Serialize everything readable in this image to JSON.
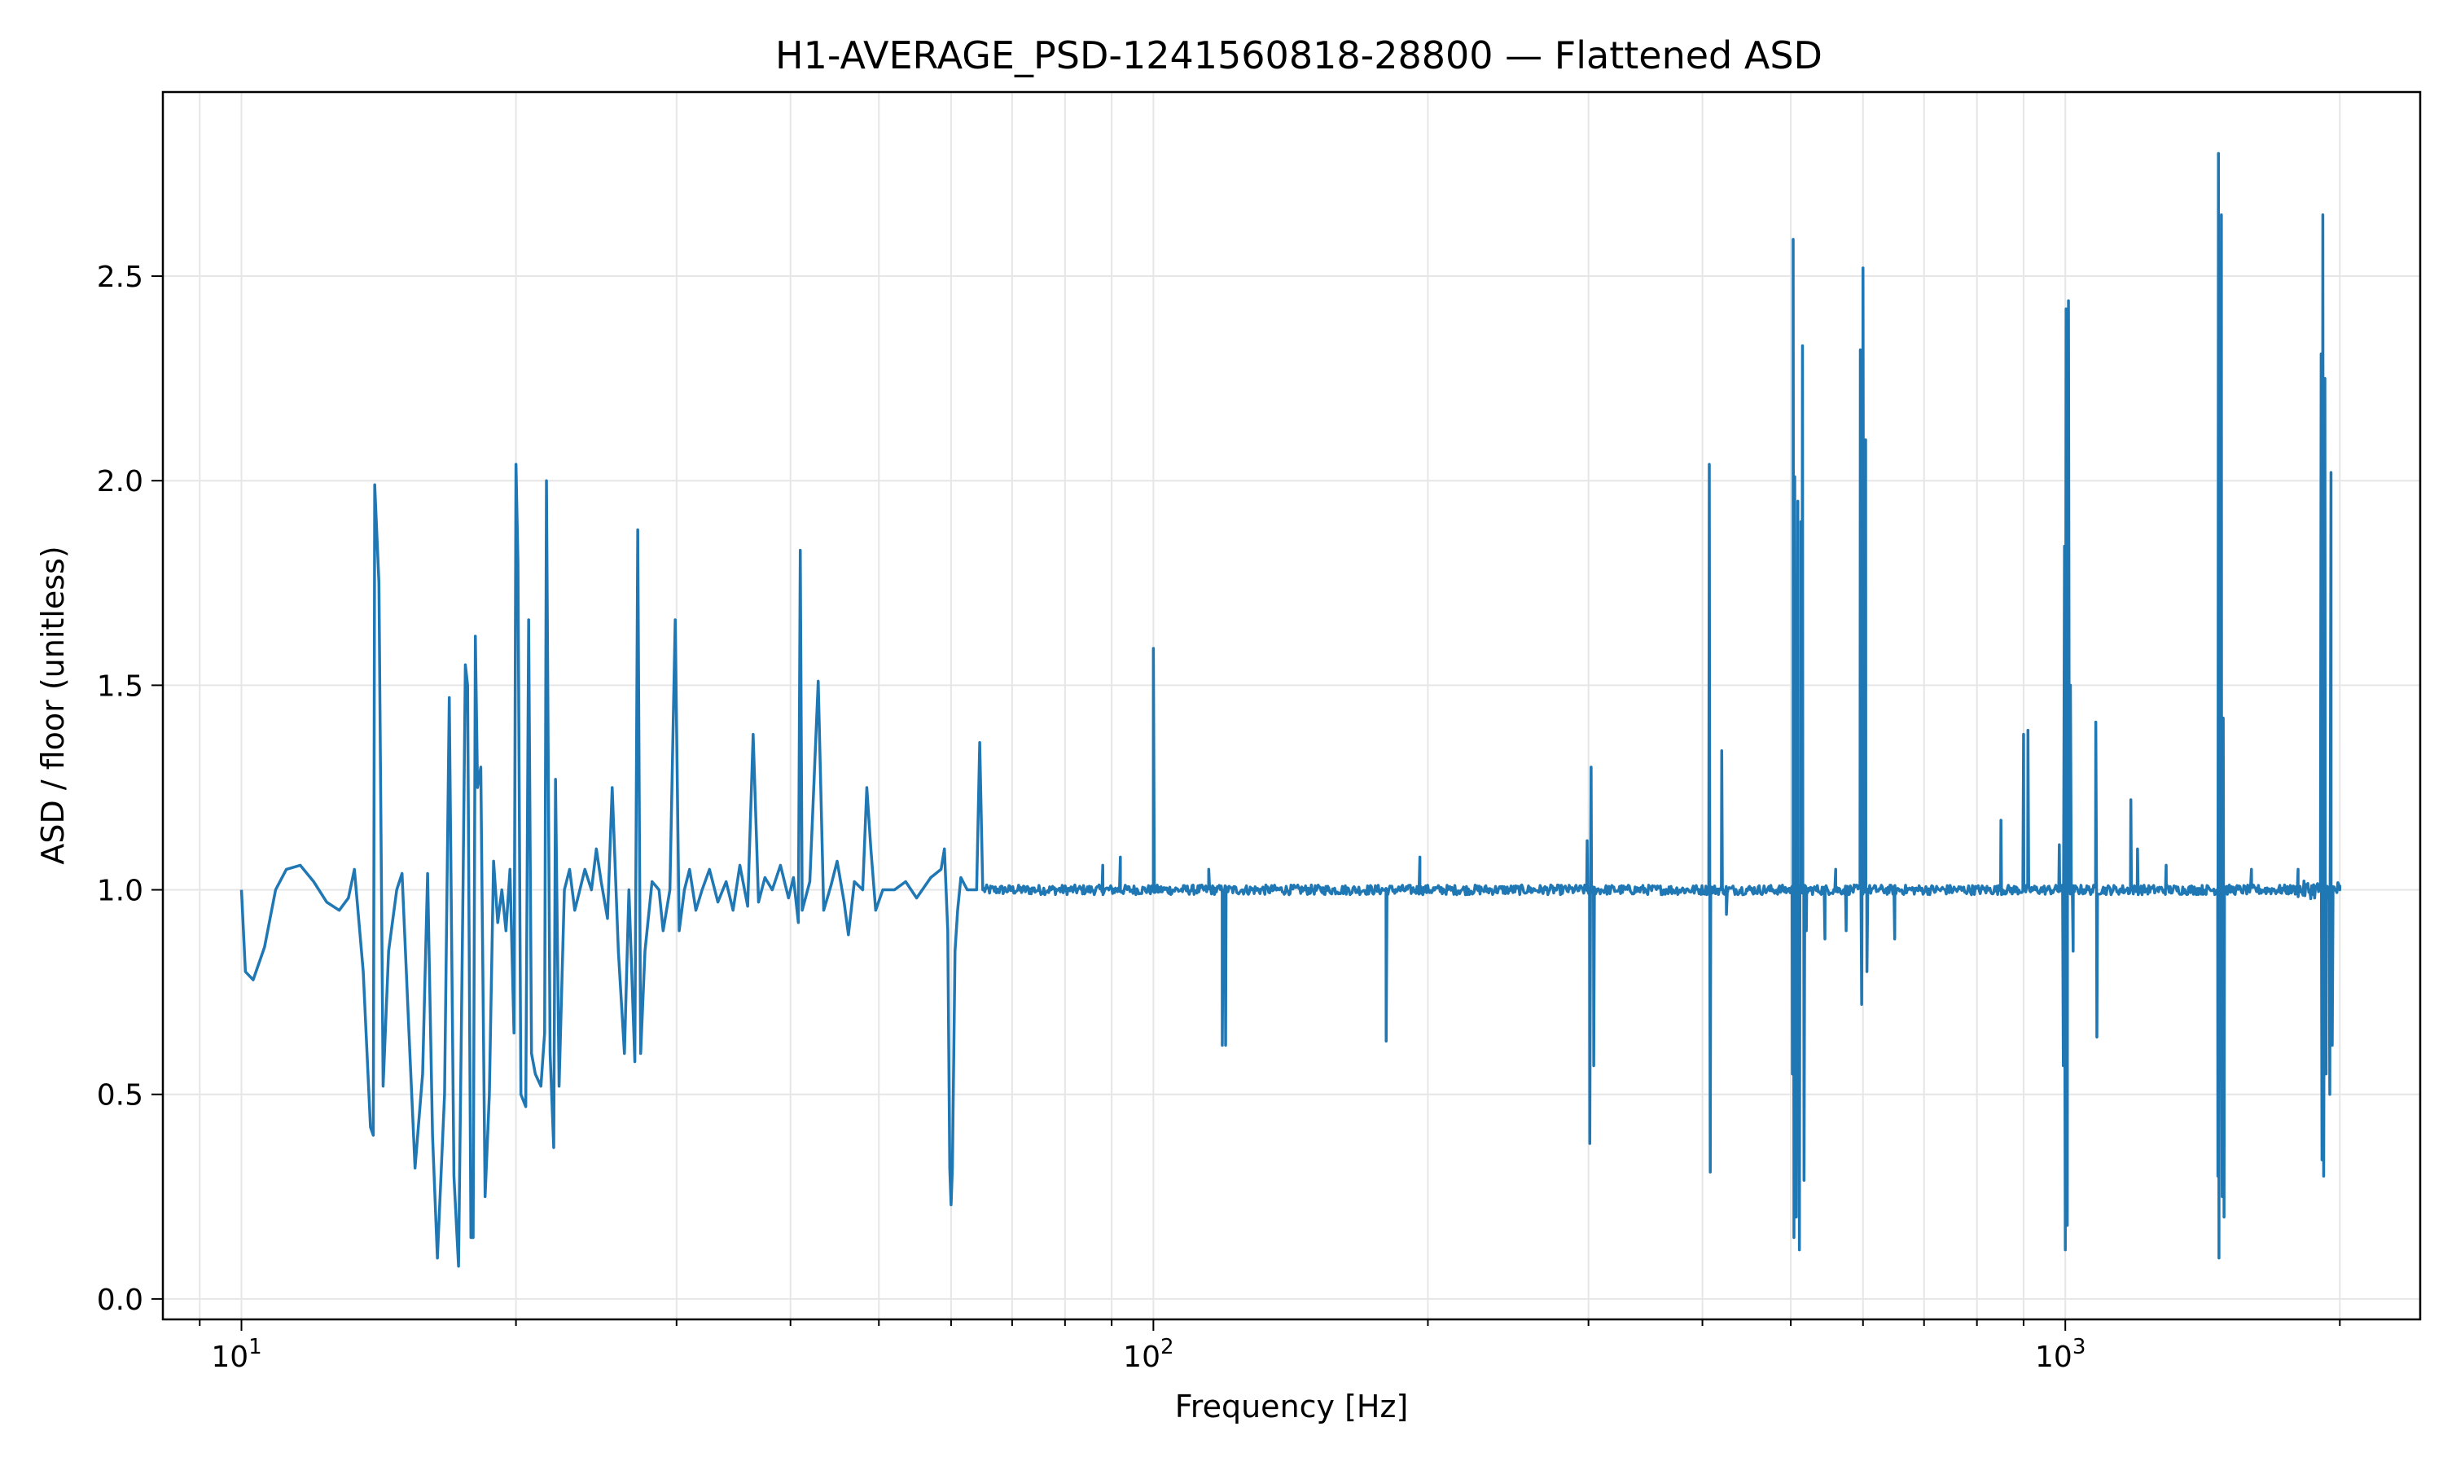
{
  "chart_data": {
    "type": "line",
    "title": "H1-AVERAGE_PSD-1241560818-28800 — Flattened ASD",
    "xlabel": "Frequency [Hz]",
    "ylabel": "ASD / floor (unitless)",
    "x_scale": "log",
    "xlim": [
      8.2,
      2450
    ],
    "ylim": [
      -0.05,
      2.95
    ],
    "grid": true,
    "x_ticks": [
      {
        "value": 10,
        "base": "10",
        "exp": "1"
      },
      {
        "value": 100,
        "base": "10",
        "exp": "2"
      },
      {
        "value": 1000,
        "base": "10",
        "exp": "3"
      }
    ],
    "y_ticks": [
      {
        "value": 0.0,
        "label": "0.0"
      },
      {
        "value": 0.5,
        "label": "0.5"
      },
      {
        "value": 1.0,
        "label": "1.0"
      },
      {
        "value": 1.5,
        "label": "1.5"
      },
      {
        "value": 2.0,
        "label": "2.0"
      },
      {
        "value": 2.5,
        "label": "2.5"
      }
    ],
    "color": "#1f77b4",
    "series": [
      {
        "name": "",
        "baseline": 1.0,
        "noise_amplitude": 0.012,
        "low_frequency_points": [
          [
            10.0,
            1.0
          ],
          [
            10.1,
            0.8
          ],
          [
            10.3,
            0.78
          ],
          [
            10.6,
            0.86
          ],
          [
            10.9,
            1.0
          ],
          [
            11.2,
            1.05
          ],
          [
            11.6,
            1.06
          ],
          [
            12.0,
            1.02
          ],
          [
            12.4,
            0.97
          ],
          [
            12.8,
            0.95
          ],
          [
            13.1,
            0.98
          ],
          [
            13.3,
            1.05
          ],
          [
            13.6,
            0.8
          ],
          [
            13.85,
            0.42
          ],
          [
            13.95,
            0.4
          ],
          [
            14.0,
            1.99
          ],
          [
            14.15,
            1.75
          ],
          [
            14.3,
            0.52
          ],
          [
            14.5,
            0.85
          ],
          [
            14.8,
            1.0
          ],
          [
            15.0,
            1.04
          ],
          [
            15.3,
            0.6
          ],
          [
            15.5,
            0.32
          ],
          [
            15.8,
            0.55
          ],
          [
            16.0,
            1.04
          ],
          [
            16.2,
            0.4
          ],
          [
            16.4,
            0.1
          ],
          [
            16.7,
            0.5
          ],
          [
            16.9,
            1.47
          ],
          [
            17.1,
            0.3
          ],
          [
            17.3,
            0.08
          ],
          [
            17.5,
            1.02
          ],
          [
            17.6,
            1.55
          ],
          [
            17.7,
            1.5
          ],
          [
            17.85,
            0.15
          ],
          [
            17.95,
            0.15
          ],
          [
            18.05,
            1.62
          ],
          [
            18.15,
            1.25
          ],
          [
            18.3,
            1.3
          ],
          [
            18.5,
            0.25
          ],
          [
            18.7,
            0.5
          ],
          [
            18.9,
            1.07
          ],
          [
            19.1,
            0.92
          ],
          [
            19.3,
            1.0
          ],
          [
            19.5,
            0.9
          ],
          [
            19.7,
            1.05
          ],
          [
            19.9,
            0.65
          ],
          [
            20.0,
            2.04
          ],
          [
            20.1,
            1.8
          ],
          [
            20.25,
            0.5
          ],
          [
            20.5,
            0.47
          ],
          [
            20.65,
            1.66
          ],
          [
            20.8,
            0.6
          ],
          [
            21.0,
            0.55
          ],
          [
            21.3,
            0.52
          ],
          [
            21.5,
            0.65
          ],
          [
            21.6,
            2.0
          ],
          [
            21.8,
            0.6
          ],
          [
            22.0,
            0.37
          ],
          [
            22.1,
            1.27
          ],
          [
            22.3,
            0.52
          ],
          [
            22.6,
            1.0
          ],
          [
            22.9,
            1.05
          ],
          [
            23.2,
            0.95
          ],
          [
            23.5,
            1.0
          ],
          [
            23.8,
            1.05
          ],
          [
            24.2,
            1.0
          ],
          [
            24.5,
            1.1
          ],
          [
            24.8,
            1.02
          ],
          [
            25.2,
            0.93
          ],
          [
            25.5,
            1.25
          ],
          [
            25.9,
            0.85
          ],
          [
            26.3,
            0.6
          ],
          [
            26.6,
            1.0
          ],
          [
            27.0,
            0.58
          ],
          [
            27.2,
            1.88
          ],
          [
            27.4,
            0.6
          ],
          [
            27.7,
            0.85
          ],
          [
            28.2,
            1.02
          ],
          [
            28.7,
            1.0
          ],
          [
            29.0,
            0.9
          ],
          [
            29.5,
            1.0
          ],
          [
            29.9,
            1.66
          ],
          [
            30.2,
            0.9
          ],
          [
            30.6,
            1.0
          ],
          [
            31.0,
            1.05
          ],
          [
            31.5,
            0.95
          ],
          [
            32.0,
            1.0
          ],
          [
            32.6,
            1.05
          ],
          [
            33.3,
            0.97
          ],
          [
            34.0,
            1.02
          ],
          [
            34.6,
            0.95
          ],
          [
            35.2,
            1.06
          ],
          [
            35.9,
            0.96
          ],
          [
            36.4,
            1.38
          ],
          [
            36.9,
            0.97
          ],
          [
            37.5,
            1.03
          ],
          [
            38.2,
            1.0
          ],
          [
            39.0,
            1.06
          ],
          [
            39.8,
            0.98
          ],
          [
            40.3,
            1.03
          ],
          [
            40.8,
            0.92
          ],
          [
            41.0,
            1.83
          ],
          [
            41.2,
            0.95
          ],
          [
            42.0,
            1.02
          ],
          [
            42.9,
            1.51
          ],
          [
            43.5,
            0.95
          ],
          [
            44.3,
            1.01
          ],
          [
            45.0,
            1.07
          ],
          [
            45.8,
            0.97
          ],
          [
            46.3,
            0.89
          ],
          [
            47.0,
            1.02
          ],
          [
            48.0,
            1.0
          ],
          [
            48.5,
            1.25
          ],
          [
            49.0,
            1.1
          ],
          [
            49.6,
            0.95
          ],
          [
            50.5,
            1.0
          ],
          [
            52.0,
            1.0
          ],
          [
            53.5,
            1.02
          ],
          [
            55.0,
            0.98
          ],
          [
            57.0,
            1.03
          ],
          [
            58.5,
            1.05
          ],
          [
            59.0,
            1.1
          ],
          [
            59.5,
            0.9
          ],
          [
            59.8,
            0.32
          ],
          [
            60.0,
            0.23
          ],
          [
            60.2,
            0.32
          ],
          [
            60.6,
            0.85
          ],
          [
            61.0,
            0.95
          ],
          [
            61.5,
            1.03
          ],
          [
            62.5,
            1.0
          ],
          [
            64.0,
            1.0
          ],
          [
            64.5,
            1.36
          ],
          [
            65.0,
            1.0
          ]
        ],
        "spikes": [
          {
            "x": 100,
            "y": 1.59
          },
          {
            "x": 92,
            "y": 1.08
          },
          {
            "x": 88,
            "y": 1.06
          },
          {
            "x": 115,
            "y": 1.05
          },
          {
            "x": 119,
            "y": 0.62
          },
          {
            "x": 120,
            "y": 0.62
          },
          {
            "x": 180,
            "y": 0.63
          },
          {
            "x": 196,
            "y": 1.08
          },
          {
            "x": 299,
            "y": 1.12
          },
          {
            "x": 301,
            "y": 0.38
          },
          {
            "x": 302,
            "y": 1.3
          },
          {
            "x": 304,
            "y": 0.57
          },
          {
            "x": 407,
            "y": 2.04
          },
          {
            "x": 408,
            "y": 0.31
          },
          {
            "x": 420,
            "y": 1.34
          },
          {
            "x": 425,
            "y": 0.94
          },
          {
            "x": 502,
            "y": 0.55
          },
          {
            "x": 503,
            "y": 2.59
          },
          {
            "x": 504,
            "y": 0.15
          },
          {
            "x": 505,
            "y": 2.01
          },
          {
            "x": 507,
            "y": 0.2
          },
          {
            "x": 509,
            "y": 1.95
          },
          {
            "x": 511,
            "y": 0.12
          },
          {
            "x": 513,
            "y": 1.9
          },
          {
            "x": 515,
            "y": 2.33
          },
          {
            "x": 517,
            "y": 0.29
          },
          {
            "x": 520,
            "y": 0.9
          },
          {
            "x": 545,
            "y": 0.88
          },
          {
            "x": 560,
            "y": 1.05
          },
          {
            "x": 575,
            "y": 0.9
          },
          {
            "x": 596,
            "y": 2.32
          },
          {
            "x": 598,
            "y": 0.72
          },
          {
            "x": 600,
            "y": 2.52
          },
          {
            "x": 602,
            "y": 1.1
          },
          {
            "x": 604,
            "y": 2.1
          },
          {
            "x": 606,
            "y": 0.8
          },
          {
            "x": 650,
            "y": 0.88
          },
          {
            "x": 850,
            "y": 1.17
          },
          {
            "x": 900,
            "y": 1.38
          },
          {
            "x": 910,
            "y": 1.39
          },
          {
            "x": 985,
            "y": 1.11
          },
          {
            "x": 995,
            "y": 0.57
          },
          {
            "x": 998,
            "y": 1.84
          },
          {
            "x": 1000,
            "y": 0.12
          },
          {
            "x": 1002,
            "y": 2.42
          },
          {
            "x": 1005,
            "y": 0.18
          },
          {
            "x": 1008,
            "y": 2.44
          },
          {
            "x": 1011,
            "y": 1.11
          },
          {
            "x": 1013,
            "y": 1.5
          },
          {
            "x": 1020,
            "y": 0.85
          },
          {
            "x": 1080,
            "y": 1.41
          },
          {
            "x": 1083,
            "y": 0.64
          },
          {
            "x": 1180,
            "y": 1.22
          },
          {
            "x": 1200,
            "y": 1.1
          },
          {
            "x": 1290,
            "y": 1.06
          },
          {
            "x": 1470,
            "y": 0.3
          },
          {
            "x": 1472,
            "y": 2.8
          },
          {
            "x": 1474,
            "y": 0.1
          },
          {
            "x": 1476,
            "y": 2.18
          },
          {
            "x": 1480,
            "y": 0.6
          },
          {
            "x": 1483,
            "y": 2.65
          },
          {
            "x": 1486,
            "y": 0.25
          },
          {
            "x": 1490,
            "y": 1.42
          },
          {
            "x": 1493,
            "y": 0.2
          },
          {
            "x": 1496,
            "y": 1.0
          },
          {
            "x": 1600,
            "y": 1.05
          },
          {
            "x": 1800,
            "y": 1.05
          },
          {
            "x": 1908,
            "y": 2.31
          },
          {
            "x": 1912,
            "y": 0.34
          },
          {
            "x": 1916,
            "y": 2.65
          },
          {
            "x": 1920,
            "y": 0.3
          },
          {
            "x": 1926,
            "y": 2.25
          },
          {
            "x": 1932,
            "y": 0.55
          },
          {
            "x": 1940,
            "y": 1.0
          },
          {
            "x": 1950,
            "y": 0.5
          },
          {
            "x": 1956,
            "y": 2.02
          },
          {
            "x": 1962,
            "y": 0.62
          },
          {
            "x": 1975,
            "y": 1.0
          },
          {
            "x": 2000,
            "y": 1.0
          }
        ]
      }
    ]
  }
}
